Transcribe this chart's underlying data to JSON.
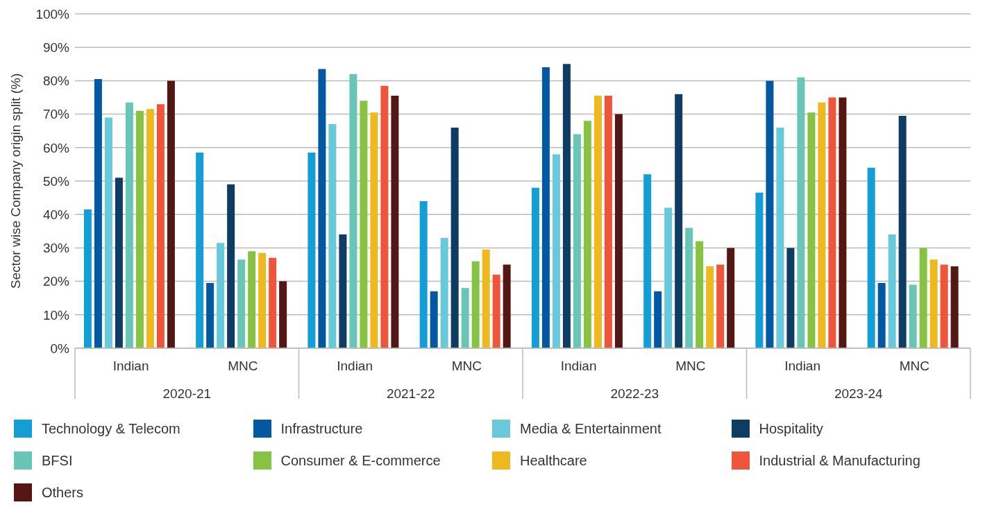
{
  "chart_data": {
    "type": "bar",
    "ylabel": "Sector wise Company origin split (%)",
    "categories": [
      "Indian",
      "MNC",
      "Indian",
      "MNC",
      "Indian",
      "MNC",
      "Indian",
      "MNC"
    ],
    "annotations": [
      "2020-21",
      "2021-22",
      "2022-23",
      "2023-24"
    ],
    "ylim": [
      0,
      100
    ],
    "yticks": [
      {
        "value": 0,
        "label": "0%"
      },
      {
        "value": 10,
        "label": "10%"
      },
      {
        "value": 20,
        "label": "20%"
      },
      {
        "value": 30,
        "label": "30%"
      },
      {
        "value": 40,
        "label": "40%"
      },
      {
        "value": 50,
        "label": "50%"
      },
      {
        "value": 60,
        "label": "60%"
      },
      {
        "value": 70,
        "label": "70%"
      },
      {
        "value": 80,
        "label": "80%"
      },
      {
        "value": 90,
        "label": "90%"
      },
      {
        "value": 100,
        "label": "100%"
      }
    ],
    "grid": "y",
    "legend": "bottom",
    "series": [
      {
        "name": "Technology & Telecom",
        "color": "#139ed6",
        "values": [
          41.5,
          58.5,
          58.5,
          44,
          48,
          52,
          46.5,
          54
        ]
      },
      {
        "name": "Infrastructure",
        "color": "#0358a2",
        "values": [
          80.5,
          19.5,
          83.5,
          17,
          84,
          17,
          80,
          19.5
        ]
      },
      {
        "name": "Media & Entertainment",
        "color": "#67c9da",
        "values": [
          69,
          31.5,
          67,
          33,
          58,
          42,
          66,
          34
        ]
      },
      {
        "name": "Hospitality",
        "color": "#0e3c63",
        "values": [
          51,
          49,
          34,
          66,
          85,
          76,
          30,
          69.5
        ]
      },
      {
        "name": "BFSI",
        "color": "#69c6b7",
        "values": [
          73.5,
          26.5,
          82,
          18,
          64,
          36,
          81,
          19
        ]
      },
      {
        "name": "Consumer & E-commerce",
        "color": "#86c343",
        "values": [
          71,
          29,
          74,
          26,
          68,
          32,
          70.5,
          30
        ]
      },
      {
        "name": "Healthcare",
        "color": "#eeb81f",
        "values": [
          71.5,
          28.5,
          70.5,
          29.5,
          75.5,
          24.5,
          73.5,
          26.5
        ]
      },
      {
        "name": "Industrial & Manufacturing",
        "color": "#ef553b",
        "values": [
          73,
          27,
          78.5,
          22,
          75.5,
          25,
          75,
          25
        ]
      },
      {
        "name": "Others",
        "color": "#541713",
        "values": [
          80,
          20,
          75.5,
          25,
          70,
          30,
          75,
          24.5
        ]
      }
    ]
  }
}
